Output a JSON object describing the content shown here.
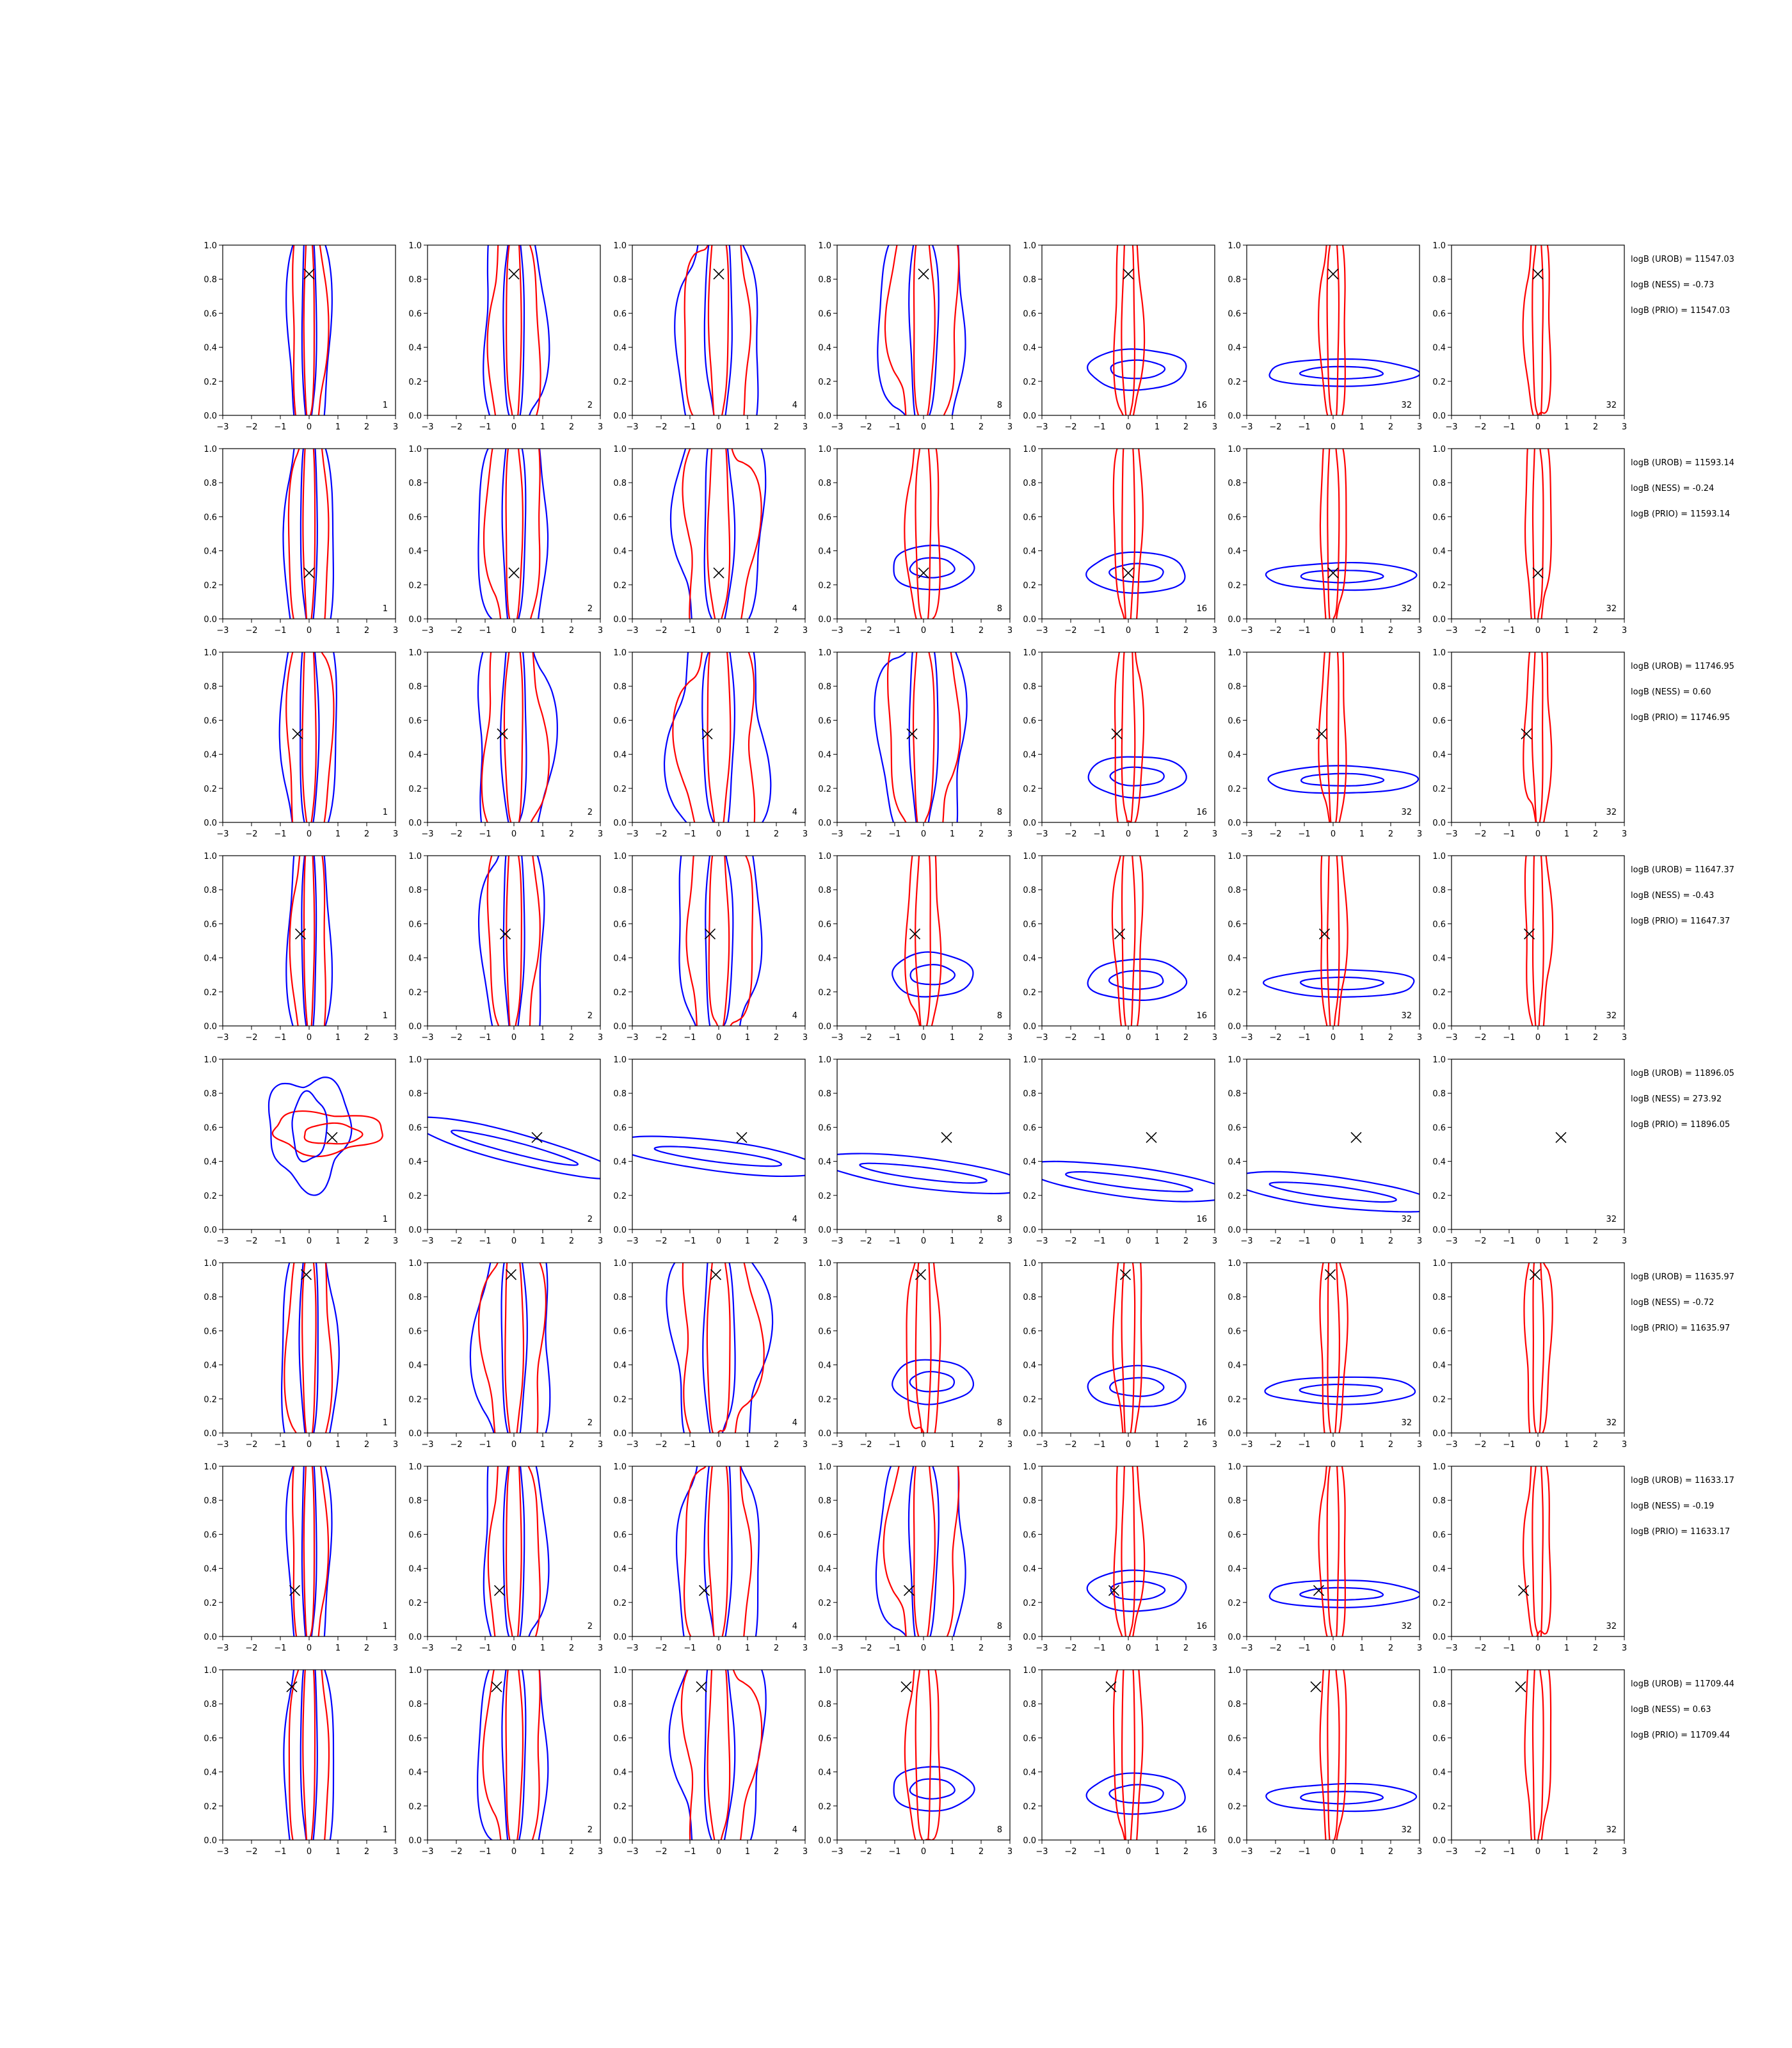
{
  "colors": {
    "red": "#ff0000",
    "blue": "#0000ff",
    "marker": "#000000",
    "axis": "#000000"
  },
  "chart_data": {
    "type": "contour-grid",
    "rows": 8,
    "columns": 7,
    "xlim": [
      -3,
      3
    ],
    "ylim": [
      0.0,
      1.0
    ],
    "x_ticks": [
      "−3",
      "−2",
      "−1",
      "0",
      "1",
      "2",
      "3"
    ],
    "y_ticks": [
      "0.0",
      "0.2",
      "0.4",
      "0.6",
      "0.8",
      "1.0"
    ],
    "column_labels": [
      "1",
      "2",
      "4",
      "8",
      "16",
      "32",
      "32"
    ],
    "series": [
      {
        "name": "",
        "color": "#ff0000"
      },
      {
        "name": "",
        "color": "#0000ff"
      }
    ],
    "row_data": [
      {
        "marker": [
          0.0,
          0.83
        ],
        "stats": [
          "logB (UROB) = 11547.03",
          "logB (NESS) = -0.73",
          "logB (PRIO) = 11547.03"
        ]
      },
      {
        "marker": [
          0.0,
          0.27
        ],
        "stats": [
          "logB (UROB) = 11593.14",
          "logB (NESS) = -0.24",
          "logB (PRIO) = 11593.14"
        ]
      },
      {
        "marker": [
          -0.4,
          0.52
        ],
        "stats": [
          "logB (UROB) = 11746.95",
          "logB (NESS) = 0.60",
          "logB (PRIO) = 11746.95"
        ]
      },
      {
        "marker": [
          -0.3,
          0.54
        ],
        "stats": [
          "logB (UROB) = 11647.37",
          "logB (NESS) = -0.43",
          "logB (PRIO) = 11647.37"
        ]
      },
      {
        "marker": [
          0.8,
          0.54
        ],
        "stats": [
          "logB (UROB) = 11896.05",
          "logB (NESS) = 273.92",
          "logB (PRIO) = 11896.05"
        ]
      },
      {
        "marker": [
          -0.1,
          0.93
        ],
        "stats": [
          "logB (UROB) = 11635.97",
          "logB (NESS) = -0.72",
          "logB (PRIO) = 11635.97"
        ]
      },
      {
        "marker": [
          -0.5,
          0.27
        ],
        "stats": [
          "logB (UROB) = 11633.17",
          "logB (NESS) = -0.19",
          "logB (PRIO) = 11633.17"
        ]
      },
      {
        "marker": [
          -0.6,
          0.9
        ],
        "stats": [
          "logB (UROB) = 11709.44",
          "logB (NESS) = 0.63",
          "logB (PRIO) = 11709.44"
        ]
      }
    ]
  }
}
